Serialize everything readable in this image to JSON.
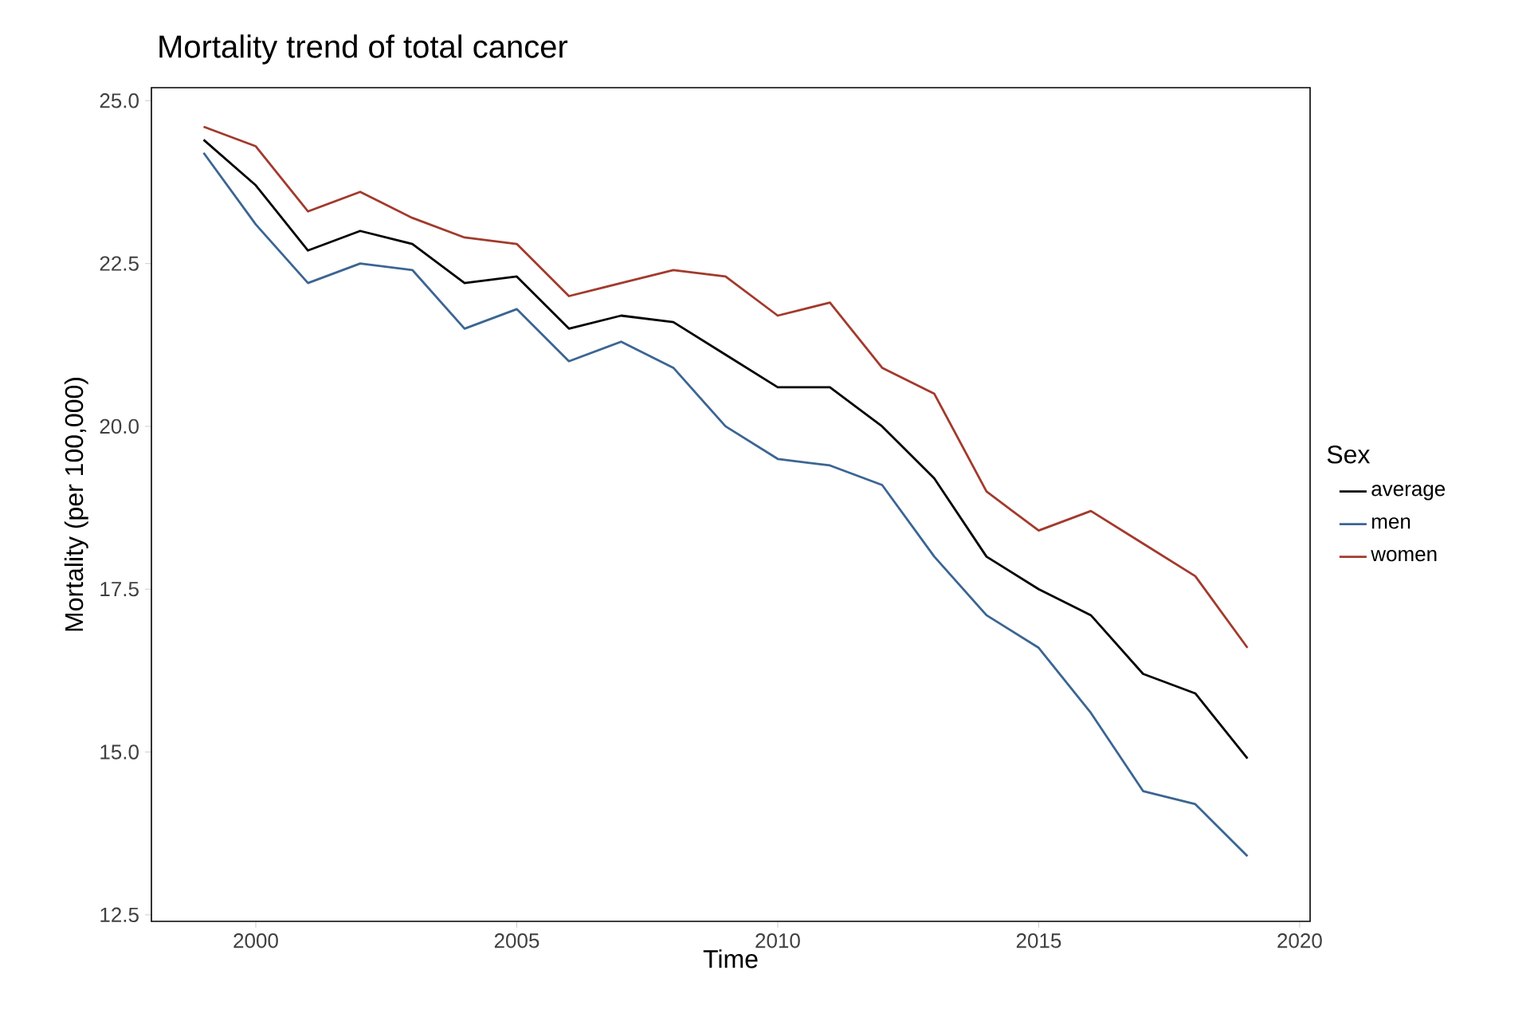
{
  "chart_data": {
    "type": "line",
    "title": "Mortality trend of total cancer",
    "xlabel": "Time",
    "ylabel": "Mortality (per 100,000)",
    "legend_title": "Sex",
    "x": [
      1999,
      2000,
      2001,
      2002,
      2003,
      2004,
      2005,
      2006,
      2007,
      2008,
      2009,
      2010,
      2011,
      2012,
      2013,
      2014,
      2015,
      2016,
      2017,
      2018,
      2019
    ],
    "series": [
      {
        "name": "average",
        "color": "#000000",
        "values": [
          24.4,
          23.7,
          22.7,
          23.0,
          22.8,
          22.2,
          22.3,
          21.5,
          21.7,
          21.6,
          21.1,
          20.6,
          20.6,
          20.0,
          19.2,
          18.0,
          17.5,
          17.1,
          16.2,
          15.9,
          14.9
        ]
      },
      {
        "name": "men",
        "color": "#3b6593",
        "values": [
          24.2,
          23.1,
          22.2,
          22.5,
          22.4,
          21.5,
          21.8,
          21.0,
          21.3,
          20.9,
          20.0,
          19.5,
          19.4,
          19.1,
          18.0,
          17.1,
          16.6,
          15.6,
          14.4,
          14.2,
          13.4
        ]
      },
      {
        "name": "women",
        "color": "#a23a2c",
        "values": [
          24.6,
          24.3,
          23.3,
          23.6,
          23.2,
          22.9,
          22.8,
          22.0,
          22.2,
          22.4,
          22.3,
          21.7,
          21.9,
          20.9,
          20.5,
          19.0,
          18.4,
          18.7,
          18.2,
          17.7,
          16.6
        ]
      }
    ],
    "xlim": [
      1998,
      2020.2
    ],
    "ylim": [
      12.4,
      25.2
    ],
    "xticks": [
      2000,
      2005,
      2010,
      2015,
      2020
    ],
    "yticks": [
      {
        "value": 12.5,
        "label": "12.5"
      },
      {
        "value": 15,
        "label": "15.0"
      },
      {
        "value": 17.5,
        "label": "17.5"
      },
      {
        "value": 20,
        "label": "20.0"
      },
      {
        "value": 22.5,
        "label": "22.5"
      },
      {
        "value": 25,
        "label": "25.0"
      }
    ],
    "grid": false,
    "legend": "right",
    "marker": "none",
    "line_style": "solid"
  }
}
